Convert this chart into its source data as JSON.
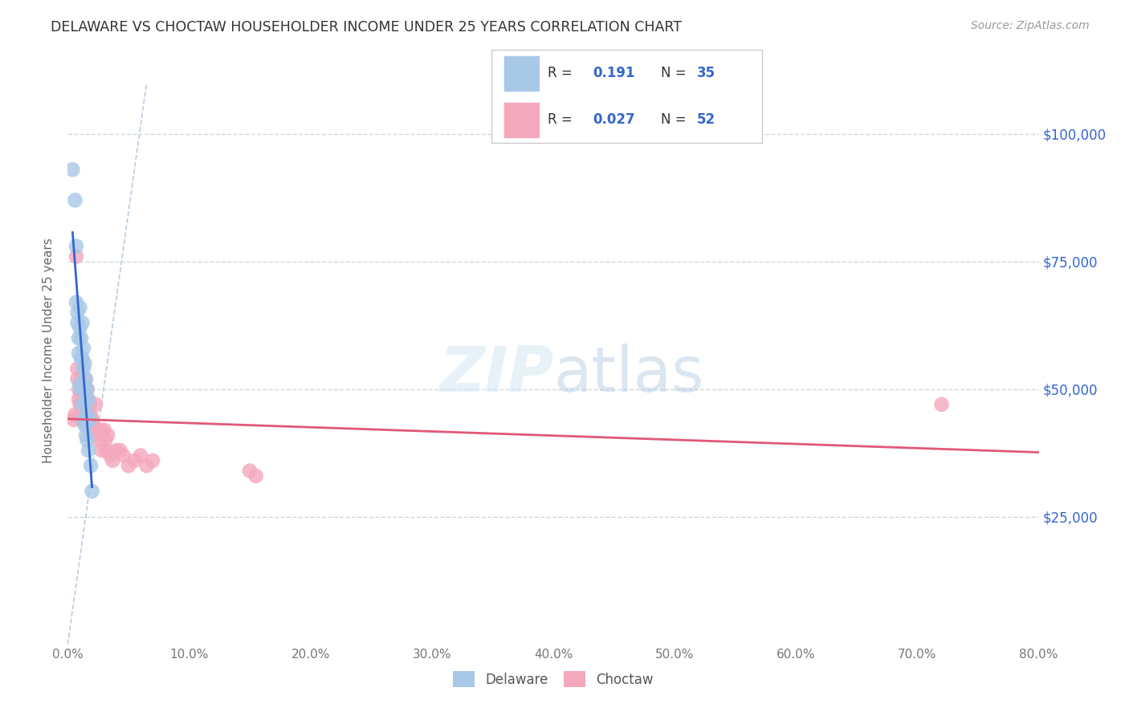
{
  "title": "DELAWARE VS CHOCTAW HOUSEHOLDER INCOME UNDER 25 YEARS CORRELATION CHART",
  "source": "Source: ZipAtlas.com",
  "ylabel": "Householder Income Under 25 years",
  "xlabel_ticks": [
    "0.0%",
    "10.0%",
    "20.0%",
    "30.0%",
    "40.0%",
    "50.0%",
    "60.0%",
    "70.0%",
    "80.0%"
  ],
  "ytick_labels": [
    "$25,000",
    "$50,000",
    "$75,000",
    "$100,000"
  ],
  "ytick_values": [
    25000,
    50000,
    75000,
    100000
  ],
  "xlim": [
    0.0,
    0.8
  ],
  "ylim": [
    0,
    115000
  ],
  "delaware_R": 0.191,
  "delaware_N": 35,
  "choctaw_R": 0.027,
  "choctaw_N": 52,
  "delaware_color": "#a8c8e8",
  "choctaw_color": "#f4a8bc",
  "delaware_line_color": "#3366cc",
  "choctaw_line_color": "#e05878",
  "diagonal_color": "#b8cce0",
  "background_color": "#ffffff",
  "grid_color": "#d0d8e0",
  "watermark_zip": "ZIP",
  "watermark_atlas": "atlas",
  "delaware_x": [
    0.004,
    0.006,
    0.007,
    0.007,
    0.008,
    0.008,
    0.009,
    0.009,
    0.01,
    0.01,
    0.01,
    0.011,
    0.011,
    0.011,
    0.012,
    0.012,
    0.012,
    0.013,
    0.013,
    0.013,
    0.013,
    0.014,
    0.014,
    0.014,
    0.015,
    0.015,
    0.015,
    0.016,
    0.016,
    0.016,
    0.017,
    0.017,
    0.018,
    0.019,
    0.02
  ],
  "delaware_y": [
    93000,
    87000,
    78000,
    67000,
    65000,
    63000,
    60000,
    57000,
    66000,
    62000,
    51000,
    60000,
    56000,
    50000,
    63000,
    56000,
    47000,
    58000,
    54000,
    50000,
    44000,
    55000,
    50000,
    43000,
    52000,
    47000,
    41000,
    50000,
    45000,
    40000,
    48000,
    38000,
    44000,
    35000,
    30000
  ],
  "choctaw_x": [
    0.005,
    0.006,
    0.007,
    0.008,
    0.008,
    0.009,
    0.009,
    0.01,
    0.01,
    0.011,
    0.011,
    0.012,
    0.012,
    0.013,
    0.013,
    0.014,
    0.014,
    0.015,
    0.015,
    0.016,
    0.016,
    0.017,
    0.017,
    0.018,
    0.018,
    0.019,
    0.02,
    0.021,
    0.022,
    0.023,
    0.024,
    0.025,
    0.026,
    0.027,
    0.028,
    0.03,
    0.031,
    0.032,
    0.033,
    0.035,
    0.037,
    0.04,
    0.043,
    0.046,
    0.05,
    0.055,
    0.06,
    0.065,
    0.07,
    0.15,
    0.155,
    0.72
  ],
  "choctaw_y": [
    44000,
    45000,
    76000,
    54000,
    52000,
    50000,
    48000,
    47000,
    45000,
    52000,
    49000,
    47000,
    44000,
    50000,
    47000,
    52000,
    45000,
    48000,
    43000,
    50000,
    46000,
    48000,
    44000,
    47000,
    42000,
    45000,
    44000,
    43000,
    42000,
    47000,
    41000,
    42000,
    40000,
    42000,
    38000,
    42000,
    40000,
    38000,
    41000,
    37000,
    36000,
    38000,
    38000,
    37000,
    35000,
    36000,
    37000,
    35000,
    36000,
    34000,
    33000,
    47000
  ]
}
